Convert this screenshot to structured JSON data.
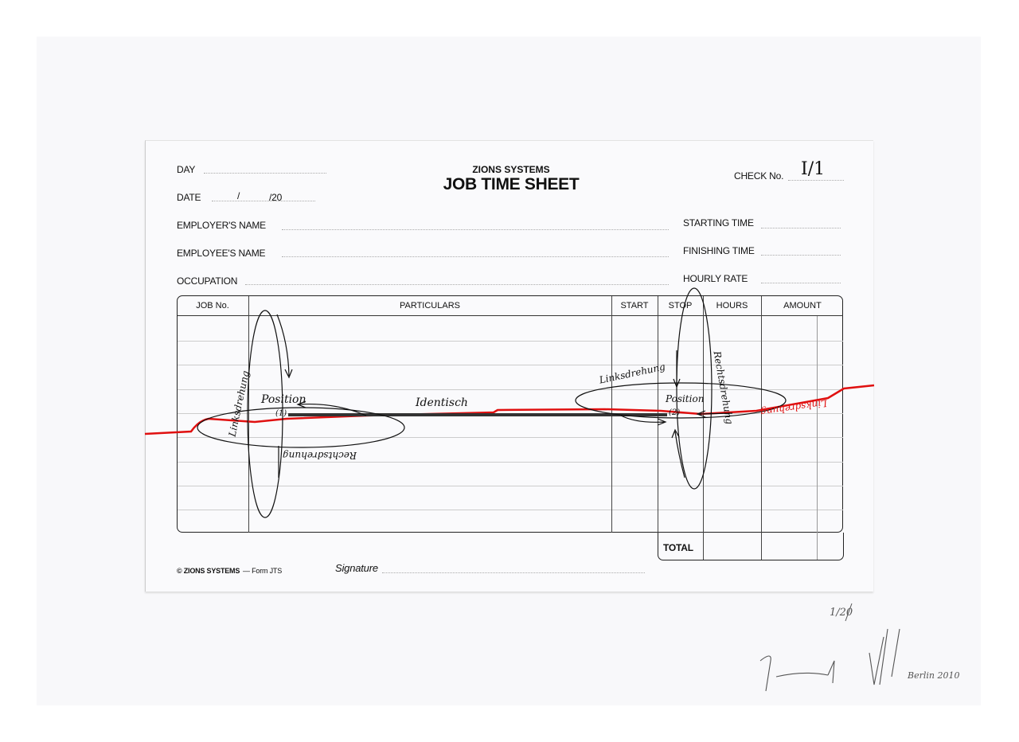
{
  "form": {
    "brand": "ZIONS SYSTEMS",
    "title": "JOB TIME SHEET",
    "fields": {
      "day": "DAY",
      "date": "DATE",
      "date_sep1": "/",
      "date_sep2": "/20",
      "employer": "EMPLOYER'S NAME",
      "employee": "EMPLOYEE'S NAME",
      "occupation": "OCCUPATION",
      "check_no": "CHECK No.",
      "check_no_value": "I/1",
      "starting_time": "STARTING TIME",
      "finishing_time": "FINISHING TIME",
      "hourly_rate": "HOURLY RATE"
    },
    "table": {
      "columns": [
        "JOB No.",
        "PARTICULARS",
        "START",
        "STOP",
        "HOURS",
        "AMOUNT"
      ],
      "total_label": "TOTAL"
    },
    "footer": {
      "copyright": "© ZIONS SYSTEMS",
      "form_code": "— Form JTS",
      "signature_label": "Signature"
    }
  },
  "annotations": {
    "position_1": "Position",
    "marker_1": "(1)",
    "position_2": "Position",
    "marker_2": "(2)",
    "identical": "Identisch",
    "left_turn_1": "Linksdrehung",
    "right_turn_1": "Rechtsdrehung",
    "left_turn_2": "Linksdrehung",
    "right_turn_2": "Rechtsdrehung",
    "red_note": "Linksdrehung"
  },
  "edition": "1/20",
  "artist_signature": "Berlin 2010",
  "colors": {
    "ink": "#111111",
    "red_line": "#e01010",
    "paper": "#fafafc"
  }
}
